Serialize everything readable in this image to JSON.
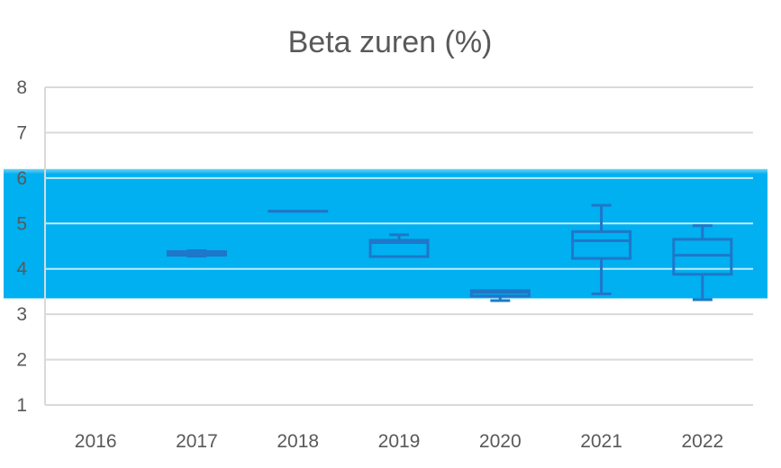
{
  "chart_data": {
    "type": "boxplot",
    "title": "Beta zuren (%)",
    "xlabel": "",
    "ylabel": "",
    "categories": [
      "2016",
      "2017",
      "2018",
      "2019",
      "2020",
      "2021",
      "2022"
    ],
    "ylim": [
      1,
      8
    ],
    "yticks": [
      "1",
      "2",
      "3",
      "4",
      "5",
      "6",
      "7",
      "8"
    ],
    "grid": true,
    "legend": "none",
    "reference_band": {
      "from": 3.35,
      "to": 6.2,
      "color": "#00b0f0"
    },
    "boxes": [
      null,
      {
        "min": 4.28,
        "q1": 4.3,
        "median": 4.34,
        "q3": 4.38,
        "max": 4.4
      },
      {
        "min": 5.27,
        "q1": 5.27,
        "median": 5.27,
        "q3": 5.27,
        "max": 5.27
      },
      {
        "min": 4.27,
        "q1": 4.27,
        "median": 4.58,
        "q3": 4.63,
        "max": 4.75
      },
      {
        "min": 3.3,
        "q1": 3.4,
        "median": 3.48,
        "q3": 3.52,
        "max": 3.52
      },
      {
        "min": 3.45,
        "q1": 4.23,
        "median": 4.62,
        "q3": 4.82,
        "max": 5.4
      },
      {
        "min": 3.32,
        "q1": 3.88,
        "median": 4.3,
        "q3": 4.65,
        "max": 4.95
      }
    ],
    "colors": {
      "box_stroke": "#1f77c9",
      "grid": "#d9d9d9",
      "text": "#595959"
    }
  }
}
